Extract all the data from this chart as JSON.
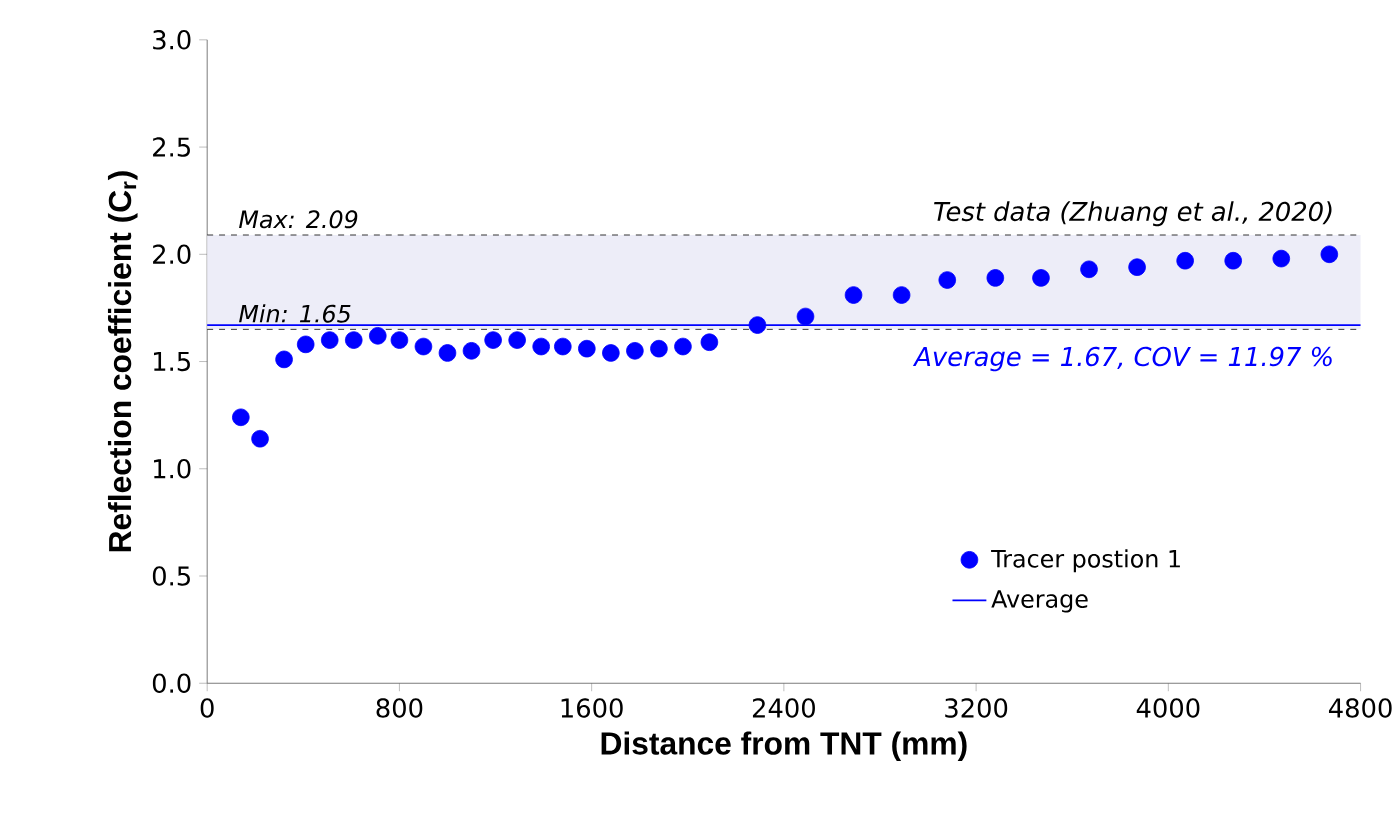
{
  "chart_data": {
    "type": "scatter",
    "xlabel": "Distance from TNT (mm)",
    "ylabel": "Reflection coefficient (C$_{r}$)",
    "xlim": [
      0,
      4800
    ],
    "xticks": [
      0,
      800,
      1600,
      2400,
      3200,
      4000,
      4800
    ],
    "ylim": [
      0,
      3.0
    ],
    "yticks": [
      {
        "value": 0,
        "label": "0.0"
      },
      {
        "value": 0.5,
        "label": "0.5"
      },
      {
        "value": 1.0,
        "label": "1.0"
      },
      {
        "value": 1.5,
        "label": "1.5"
      },
      {
        "value": 2.0,
        "label": "2.0"
      },
      {
        "value": 2.5,
        "label": "2.5"
      },
      {
        "value": 3.0,
        "label": "3.0"
      }
    ],
    "grid": false,
    "legend": "bottom right",
    "series": [
      {
        "name": "Tracer postion 1",
        "marker": "circle",
        "color": "#0000ff",
        "x": [
          140,
          220,
          320,
          410,
          510,
          610,
          710,
          800,
          900,
          1000,
          1100,
          1190,
          1290,
          1390,
          1480,
          1580,
          1680,
          1780,
          1880,
          1980,
          2090,
          2290,
          2490,
          2690,
          2890,
          3080,
          3280,
          3470,
          3670,
          3870,
          4070,
          4270,
          4470,
          4670
        ],
        "values": [
          1.24,
          1.14,
          1.51,
          1.58,
          1.6,
          1.6,
          1.62,
          1.6,
          1.57,
          1.54,
          1.55,
          1.6,
          1.6,
          1.57,
          1.57,
          1.56,
          1.54,
          1.55,
          1.56,
          1.57,
          1.59,
          1.67,
          1.71,
          1.81,
          1.81,
          1.88,
          1.89,
          1.89,
          1.93,
          1.94,
          1.97,
          1.97,
          1.98,
          2.0
        ]
      },
      {
        "name": "Average",
        "type": "line",
        "line_style": "solid",
        "color": "#0000ff",
        "x": [
          0,
          4800
        ],
        "values": [
          1.67,
          1.67
        ]
      }
    ],
    "bands": [
      {
        "axis": "y",
        "from": 1.65,
        "to": 2.09,
        "color": "#ededf8"
      }
    ],
    "ref_lines": [
      {
        "axis": "y",
        "value": 2.09,
        "label": "Max: 2.09",
        "color": "#000000",
        "line_style": "dashed"
      },
      {
        "axis": "y",
        "value": 1.65,
        "label": "Min: 1.65",
        "color": "#000000",
        "line_style": "dashed"
      }
    ],
    "annotations": [
      "Test data (Zhuang et al., 2020)",
      "Average = 1.67, COV = 11.97 %"
    ]
  }
}
